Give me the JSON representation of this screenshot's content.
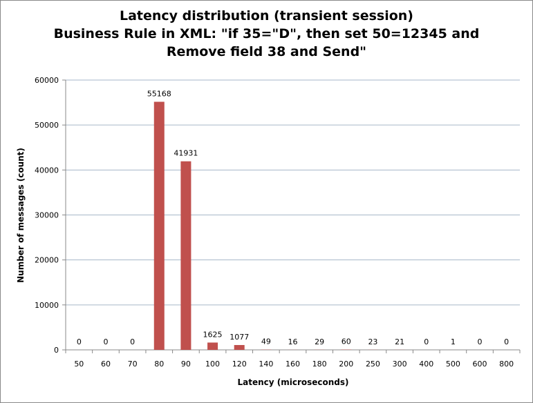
{
  "chart_data": {
    "type": "bar",
    "title_lines": [
      "Latency distribution (transient session)",
      "Business Rule in XML: \"if 35=\"D\", then set 50=12345 and",
      "Remove field 38 and Send\""
    ],
    "xlabel": "Latency (microseconds)",
    "ylabel": "Number of messages (count)",
    "categories": [
      "50",
      "60",
      "70",
      "80",
      "90",
      "100",
      "120",
      "140",
      "160",
      "180",
      "200",
      "250",
      "300",
      "400",
      "500",
      "600",
      "800"
    ],
    "values": [
      0,
      0,
      0,
      55168,
      41931,
      1625,
      1077,
      49,
      16,
      29,
      60,
      23,
      21,
      0,
      1,
      0,
      0
    ],
    "ylim": [
      0,
      60000
    ],
    "yticks": [
      0,
      10000,
      20000,
      30000,
      40000,
      50000,
      60000
    ],
    "grid": true,
    "legend": "none",
    "bar_color": "#c0504d",
    "grid_color": "#a6b6c8"
  }
}
